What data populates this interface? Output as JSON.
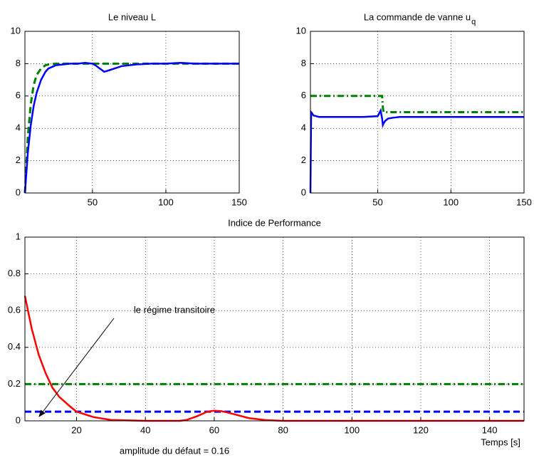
{
  "chart_data": [
    {
      "type": "line",
      "title": "Le niveau  L",
      "x": [
        4,
        6,
        8,
        10,
        12,
        15,
        18,
        20,
        25,
        30,
        35,
        40,
        45,
        50,
        52,
        55,
        58,
        60,
        65,
        70,
        80,
        90,
        100,
        110,
        120,
        130,
        140,
        150
      ],
      "series": [
        {
          "color": "#008000",
          "dash": "dashed",
          "values": [
            0,
            3.5,
            5.5,
            6.7,
            7.3,
            7.7,
            7.9,
            7.95,
            8,
            8,
            8,
            8,
            8,
            8,
            8,
            8,
            8,
            8,
            8,
            8,
            8,
            8,
            8,
            8,
            8,
            8,
            8,
            8
          ]
        },
        {
          "color": "#0000ff",
          "dash": "solid",
          "values": [
            0,
            2.5,
            4.2,
            5.4,
            6.2,
            7.0,
            7.5,
            7.7,
            7.9,
            7.95,
            8,
            8,
            8.05,
            8,
            7.9,
            7.7,
            7.5,
            7.55,
            7.7,
            7.85,
            7.95,
            8,
            8,
            8.05,
            8,
            8,
            8,
            8
          ]
        }
      ],
      "xlim": [
        4,
        150
      ],
      "xticks": [
        50,
        100,
        150
      ],
      "ylim": [
        0,
        10
      ],
      "yticks": [
        0,
        2,
        4,
        6,
        8,
        10
      ],
      "grid": true
    },
    {
      "type": "line",
      "title": "La commande de vanne  u",
      "title_subscript": "q",
      "x": [
        4,
        4.5,
        5,
        6,
        8,
        10,
        20,
        30,
        40,
        50,
        52,
        53,
        53.5,
        54,
        55,
        57,
        60,
        65,
        70,
        80,
        100,
        150
      ],
      "series": [
        {
          "color": "#008000",
          "dash": "dashdot",
          "values": [
            6,
            6,
            6,
            6,
            6,
            6,
            6,
            6,
            6,
            6,
            6,
            6,
            5.3,
            5,
            5,
            5,
            5,
            5,
            5,
            5,
            5,
            5
          ]
        },
        {
          "color": "#0000ff",
          "dash": "solid",
          "values": [
            0,
            5,
            4.95,
            4.8,
            4.75,
            4.7,
            4.7,
            4.7,
            4.7,
            4.75,
            5.1,
            4.6,
            4.2,
            4.3,
            4.45,
            4.6,
            4.65,
            4.7,
            4.7,
            4.7,
            4.7,
            4.7
          ]
        }
      ],
      "xlim": [
        4,
        150
      ],
      "xticks": [
        50,
        100,
        150
      ],
      "ylim": [
        0,
        10
      ],
      "yticks": [
        0,
        2,
        4,
        6,
        8,
        10
      ],
      "grid": true
    },
    {
      "type": "line",
      "title": "Indice de Performance",
      "xlabel": "Temps [s]",
      "annotation": "le régime transitoire",
      "note": "amplitude du défaut = 0.16",
      "x": [
        5,
        7,
        9,
        11,
        13,
        15,
        18,
        20,
        25,
        30,
        40,
        50,
        52,
        55,
        58,
        60,
        62,
        65,
        70,
        75,
        80,
        90,
        100,
        150
      ],
      "series": [
        {
          "color": "#ff0000",
          "dash": "solid",
          "values": [
            0.68,
            0.5,
            0.36,
            0.26,
            0.18,
            0.13,
            0.08,
            0.05,
            0.02,
            0.005,
            0,
            0,
            0.005,
            0.025,
            0.05,
            0.055,
            0.053,
            0.04,
            0.015,
            0.004,
            0,
            0,
            0,
            0
          ]
        }
      ],
      "reference_lines": [
        {
          "value": 0.2,
          "color": "#008000",
          "dash": "dashdot"
        },
        {
          "value": 0.05,
          "color": "#0000ff",
          "dash": "dashed"
        }
      ],
      "xlim": [
        5,
        150
      ],
      "xticks": [
        20,
        40,
        60,
        80,
        100,
        120,
        140
      ],
      "ylim": [
        0,
        1
      ],
      "yticks": [
        0,
        0.2,
        0.4,
        0.6,
        0.8,
        1
      ],
      "grid": true
    }
  ]
}
